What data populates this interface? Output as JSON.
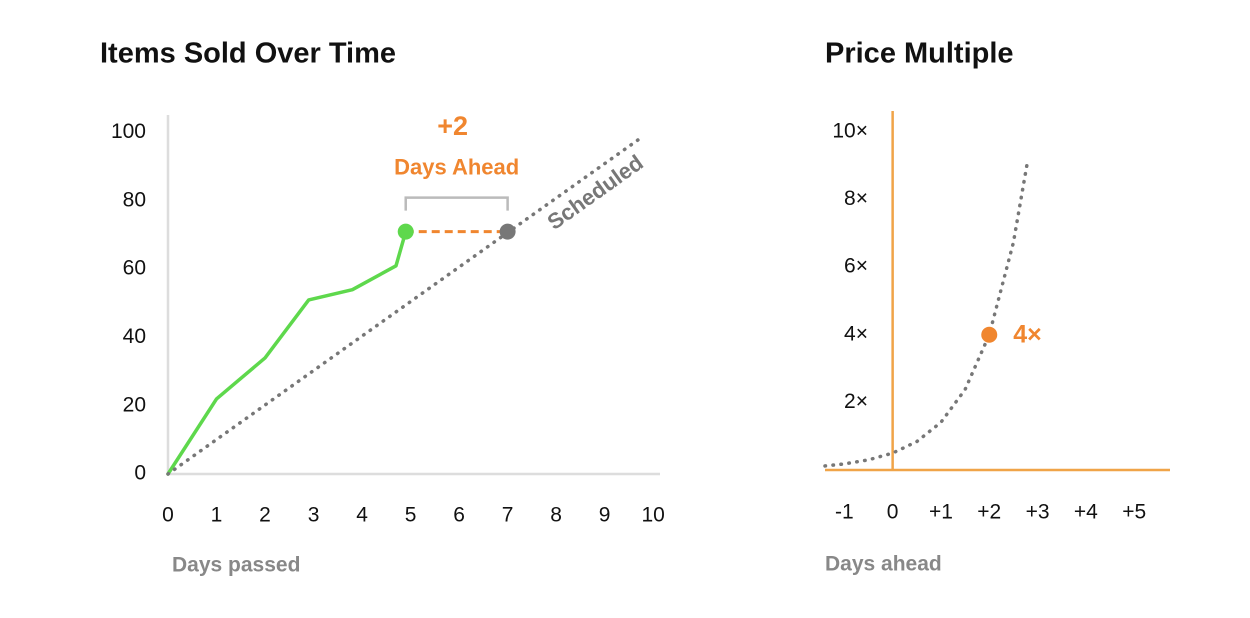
{
  "chart_data": [
    {
      "type": "line",
      "title": "Items Sold Over Time",
      "xlabel": "Days passed",
      "xlim": [
        0,
        10.1
      ],
      "ylim": [
        0,
        104
      ],
      "xticks": [
        0,
        1,
        2,
        3,
        4,
        5,
        6,
        7,
        8,
        9,
        10
      ],
      "yticks": [
        0,
        20,
        40,
        60,
        80,
        100
      ],
      "series": [
        {
          "color": "#5ed84c",
          "style": "solid",
          "x": [
            0,
            1,
            2,
            2.9,
            3.8,
            4.7,
            4.9
          ],
          "values": [
            0,
            22,
            34,
            51,
            54,
            61,
            71
          ]
        },
        {
          "name": "Scheduled",
          "color": "#777777",
          "style": "dotted",
          "x": [
            0,
            9.7
          ],
          "values": [
            0,
            98
          ]
        }
      ],
      "markers": [
        {
          "x": 4.9,
          "y": 71,
          "color": "#5ed84c"
        },
        {
          "x": 7,
          "y": 71,
          "color": "#777777"
        }
      ],
      "annotation": {
        "title": "+2",
        "text": "Days Ahead",
        "color": "#f0862f"
      }
    },
    {
      "type": "line",
      "title": "Price Multiple",
      "xlabel": "Days ahead",
      "xlim": [
        -1.4,
        5.7
      ],
      "ylim": [
        0,
        10.5
      ],
      "xticks": [
        -1,
        0,
        {
          "value": 1,
          "label": "+1"
        },
        {
          "value": 2,
          "label": "+2"
        },
        {
          "value": 3,
          "label": "+3"
        },
        {
          "value": 4,
          "label": "+4"
        },
        {
          "value": 5,
          "label": "+5"
        }
      ],
      "yticks": [
        {
          "value": 2,
          "label": "2×"
        },
        {
          "value": 4,
          "label": "4×"
        },
        {
          "value": 6,
          "label": "6×"
        },
        {
          "value": 8,
          "label": "8×"
        },
        {
          "value": 10,
          "label": "10×"
        }
      ],
      "series": [
        {
          "color": "#777777",
          "style": "dotted",
          "x": [
            -1.4,
            -1,
            -0.5,
            0,
            0.5,
            1,
            1.5,
            2,
            2.5,
            2.8
          ],
          "values": [
            0.12,
            0.18,
            0.3,
            0.5,
            0.84,
            1.41,
            2.38,
            4,
            6.73,
            9.19
          ]
        }
      ],
      "markers": [
        {
          "x": 2,
          "y": 4,
          "color": "#f0862f",
          "label": "4×"
        }
      ]
    }
  ]
}
